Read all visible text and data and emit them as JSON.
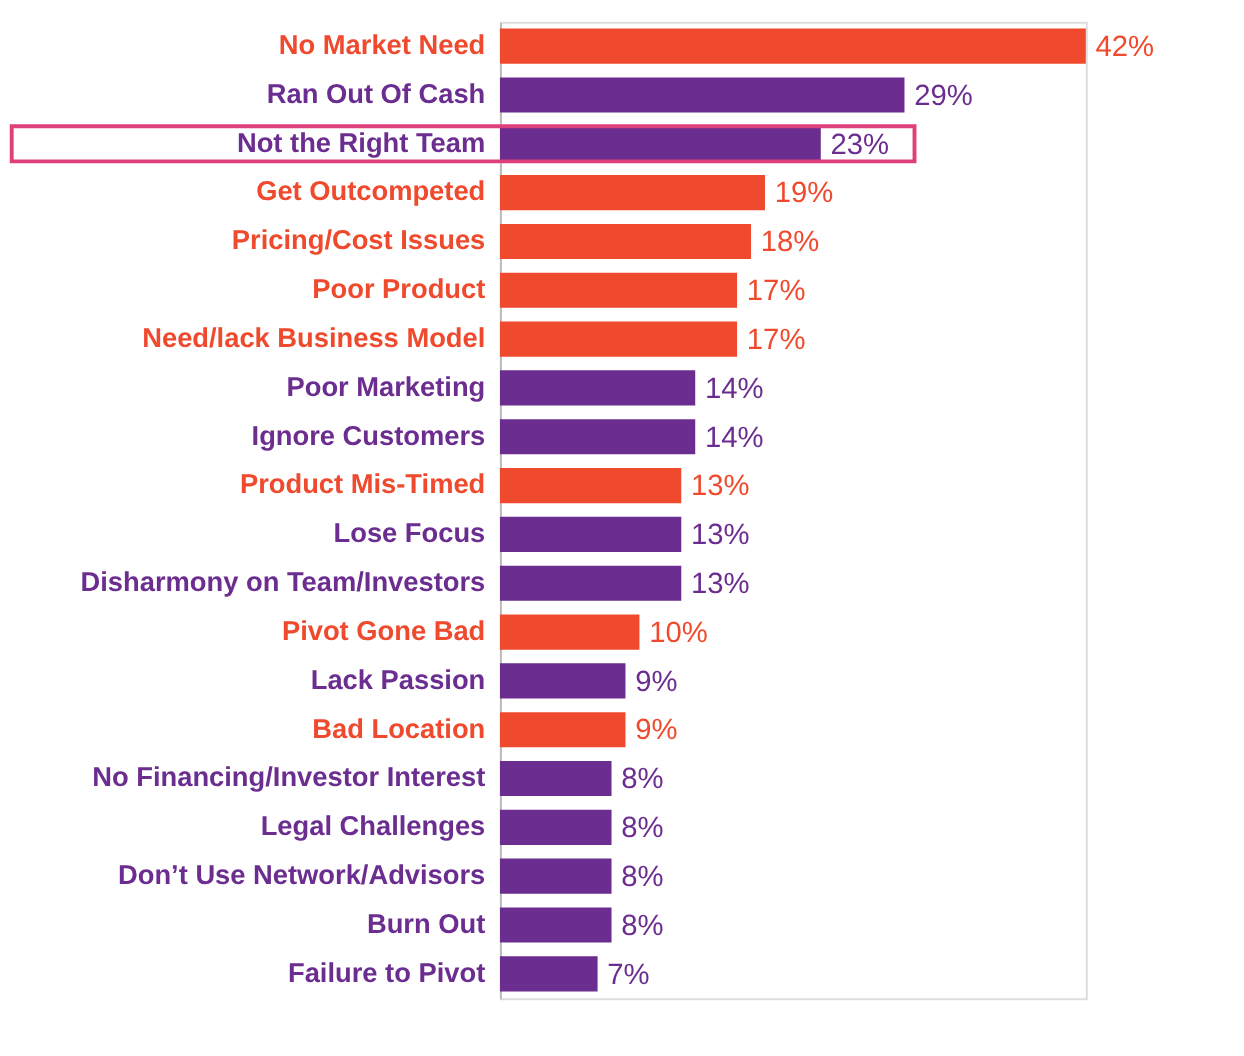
{
  "chart_data": {
    "type": "bar",
    "orientation": "horizontal",
    "categories": [
      "No Market Need",
      "Ran Out Of Cash",
      "Not the Right Team",
      "Get Outcompeted",
      "Pricing/Cost Issues",
      "Poor Product",
      "Need/lack Business Model",
      "Poor Marketing",
      "Ignore Customers",
      "Product Mis-Timed",
      "Lose Focus",
      "Disharmony on Team/Investors",
      "Pivot Gone Bad",
      "Lack Passion",
      "Bad Location",
      "No Financing/Investor Interest",
      "Legal Challenges",
      "Don’t Use Network/Advisors",
      "Burn Out",
      "Failure to Pivot"
    ],
    "values": [
      42,
      29,
      23,
      19,
      18,
      17,
      17,
      14,
      14,
      13,
      13,
      13,
      10,
      9,
      9,
      8,
      8,
      8,
      8,
      7
    ],
    "value_labels": [
      "42%",
      "29%",
      "23%",
      "19%",
      "18%",
      "17%",
      "17%",
      "14%",
      "14%",
      "13%",
      "13%",
      "13%",
      "10%",
      "9%",
      "9%",
      "8%",
      "8%",
      "8%",
      "8%",
      "7%"
    ],
    "colors": [
      "#ef4a2d",
      "#6b2d8f",
      "#6b2d8f",
      "#ef4a2d",
      "#ef4a2d",
      "#ef4a2d",
      "#ef4a2d",
      "#6b2d8f",
      "#6b2d8f",
      "#ef4a2d",
      "#6b2d8f",
      "#6b2d8f",
      "#ef4a2d",
      "#6b2d8f",
      "#ef4a2d",
      "#6b2d8f",
      "#6b2d8f",
      "#6b2d8f",
      "#6b2d8f",
      "#6b2d8f"
    ],
    "grid": false
  }
}
